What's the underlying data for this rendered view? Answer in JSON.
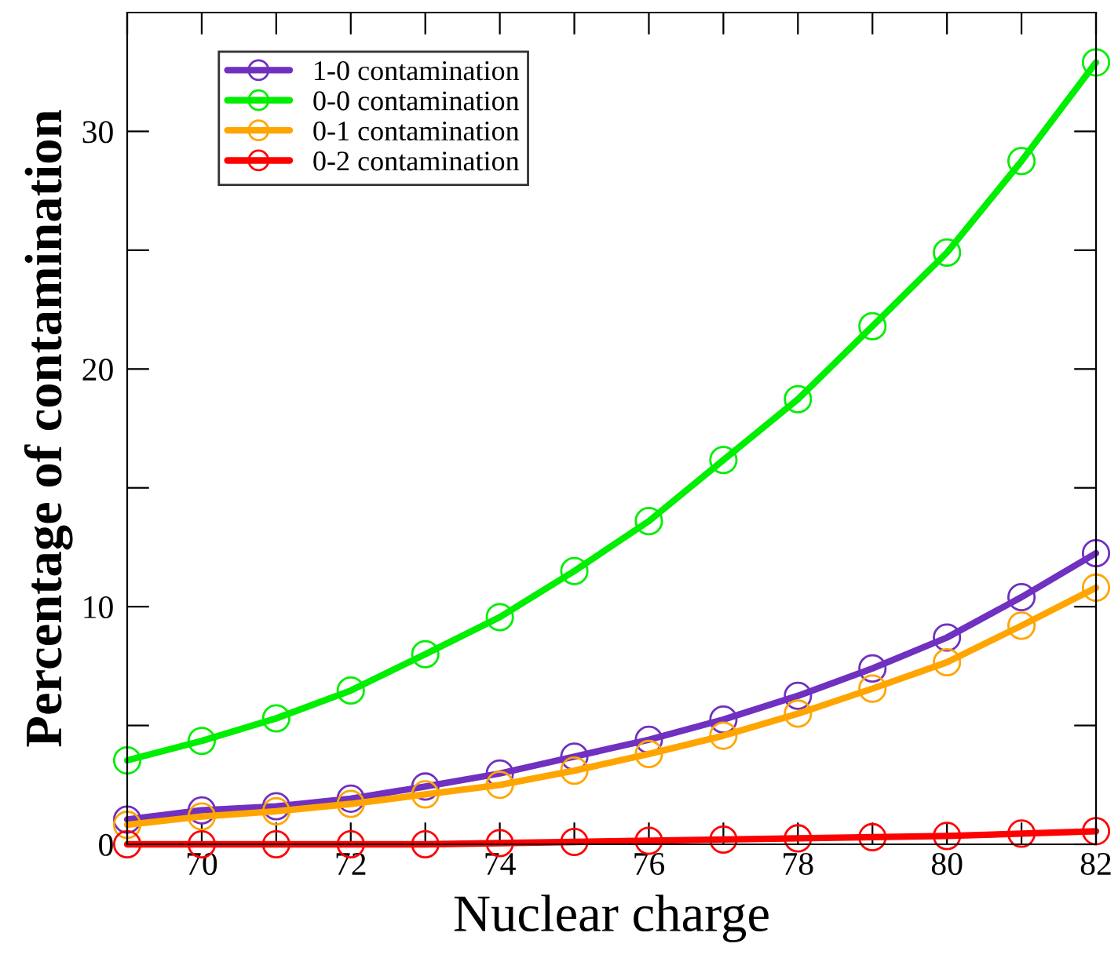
{
  "chart_data": {
    "type": "line",
    "xlabel": "Nuclear charge",
    "ylabel": "Percentage of contamination",
    "x": [
      69,
      70,
      71,
      72,
      73,
      74,
      75,
      76,
      77,
      78,
      79,
      80,
      81,
      82
    ],
    "series": [
      {
        "name": "1-0 contamination",
        "color": "#7030c0",
        "values": [
          1.04,
          1.43,
          1.6,
          1.92,
          2.43,
          2.98,
          3.69,
          4.4,
          5.25,
          6.25,
          7.4,
          8.7,
          10.4,
          12.25
        ]
      },
      {
        "name": "0-0 contamination",
        "color": "#00ee00",
        "values": [
          3.53,
          4.35,
          5.3,
          6.47,
          8.0,
          9.56,
          11.5,
          13.6,
          16.17,
          18.73,
          21.8,
          24.9,
          28.75,
          32.9
        ]
      },
      {
        "name": "0-1 contamination",
        "color": "#ffa500",
        "values": [
          0.82,
          1.17,
          1.39,
          1.7,
          2.1,
          2.5,
          3.1,
          3.8,
          4.57,
          5.5,
          6.55,
          7.66,
          9.2,
          10.8
        ]
      },
      {
        "name": "0-2 contamination",
        "color": "#ff0000",
        "values": [
          0.0,
          0.0,
          0.0,
          0.0,
          0.0,
          0.05,
          0.1,
          0.15,
          0.2,
          0.25,
          0.3,
          0.35,
          0.45,
          0.55
        ]
      }
    ],
    "xlim": [
      69,
      82
    ],
    "xticks": [
      {
        "value": 69,
        "label": null
      },
      70,
      {
        "value": 71,
        "label": null
      },
      72,
      {
        "value": 73,
        "label": null
      },
      74,
      {
        "value": 75,
        "label": null
      },
      76,
      {
        "value": 77,
        "label": null
      },
      78,
      {
        "value": 79,
        "label": null
      },
      80,
      {
        "value": 81,
        "label": null
      },
      82
    ],
    "ylim": [
      0,
      35
    ],
    "yticks": [
      0,
      {
        "value": 5,
        "label": null
      },
      10,
      {
        "value": 15,
        "label": null
      },
      20,
      {
        "value": 25,
        "label": null
      },
      30
    ],
    "marker": "circle",
    "line_style": "solid",
    "legend": "top left",
    "grid": false
  }
}
